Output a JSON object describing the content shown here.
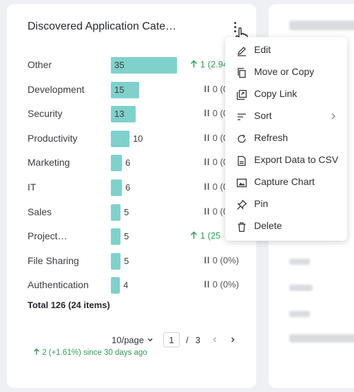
{
  "widget": {
    "title": "Discovered Application Cate…",
    "total": "Total 126 (24 items)",
    "since": "2 (+1.61%) since 30 days ago"
  },
  "chart_data": {
    "type": "bar",
    "orientation": "horizontal",
    "categories": [
      "Other",
      "Development",
      "Security",
      "Productivity",
      "Marketing",
      "IT",
      "Sales",
      "Project…",
      "File Sharing",
      "Authentication"
    ],
    "values": [
      35,
      15,
      13,
      10,
      6,
      6,
      5,
      5,
      5,
      4
    ],
    "changes": [
      {
        "direction": "up",
        "text": "1",
        "pct": "(2.94"
      },
      {
        "direction": "flat",
        "text": "0",
        "pct": "(0"
      },
      {
        "direction": "flat",
        "text": "0",
        "pct": "(0"
      },
      {
        "direction": "flat",
        "text": "0",
        "pct": "(0"
      },
      {
        "direction": "flat",
        "text": "0",
        "pct": "(0"
      },
      {
        "direction": "flat",
        "text": "0",
        "pct": "(0"
      },
      {
        "direction": "flat",
        "text": "0",
        "pct": "(0"
      },
      {
        "direction": "up",
        "text": "1",
        "pct": "(25"
      },
      {
        "direction": "flat",
        "text": "0",
        "pct": "(0%)"
      },
      {
        "direction": "flat",
        "text": "0",
        "pct": "(0%)"
      }
    ],
    "bar_color": "#7fd1cc",
    "up_color": "#2f9a55"
  },
  "pager": {
    "per_page": "10/page",
    "current_page": "1",
    "separator": "/",
    "total_pages": "3"
  },
  "menu": {
    "items": [
      {
        "label": "Edit",
        "icon": "pencil-icon"
      },
      {
        "label": "Move or Copy",
        "icon": "copy-icon"
      },
      {
        "label": "Copy Link",
        "icon": "link-icon"
      },
      {
        "label": "Sort",
        "icon": "sort-icon"
      },
      {
        "label": "Refresh",
        "icon": "refresh-icon"
      },
      {
        "label": "Export Data to CSV",
        "icon": "csv-icon"
      },
      {
        "label": "Capture Chart",
        "icon": "image-icon"
      },
      {
        "label": "Pin",
        "icon": "pin-icon"
      },
      {
        "label": "Delete",
        "icon": "trash-icon"
      }
    ]
  }
}
